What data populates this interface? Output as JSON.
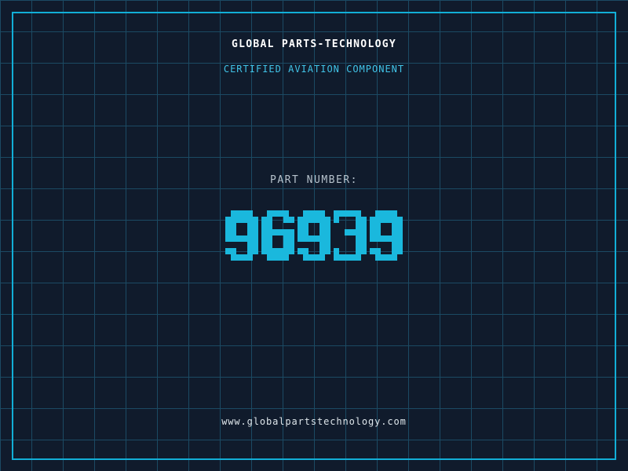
{
  "header": {
    "title": "GLOBAL PARTS-TECHNOLOGY",
    "subtitle": "CERTIFIED AVIATION COMPONENT"
  },
  "part": {
    "label": "PART NUMBER:",
    "number": "96939"
  },
  "footer": {
    "url": "www.globalpartstechnology.com"
  },
  "colors": {
    "background": "#101b2c",
    "grid_line": "#1b4a63",
    "frame": "#12aed6",
    "title": "#ffffff",
    "subtitle": "#41c4e8",
    "part_label": "#b6c2cc",
    "part_number": "#1ab8dd",
    "footer_url": "#dde5ea"
  }
}
